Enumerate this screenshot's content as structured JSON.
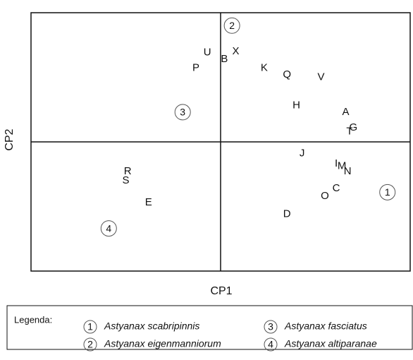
{
  "chart_data": {
    "type": "scatter",
    "x_label": "CP1",
    "y_label": "CP2",
    "xlim": [
      -1,
      1
    ],
    "ylim": [
      -1,
      1
    ],
    "labels": [
      "U",
      "X",
      "B",
      "P",
      "K",
      "Q",
      "V",
      "H",
      "A",
      "G",
      "T",
      "J",
      "I",
      "M",
      "N",
      "R",
      "S",
      "C",
      "O",
      "E",
      "D"
    ],
    "x": [
      -0.07,
      0.08,
      0.02,
      -0.13,
      0.23,
      0.35,
      0.53,
      0.4,
      0.66,
      0.7,
      0.68,
      0.43,
      0.61,
      0.64,
      0.67,
      -0.49,
      -0.5,
      0.61,
      0.55,
      -0.38,
      0.35
    ],
    "y": [
      0.69,
      0.7,
      0.64,
      0.57,
      0.57,
      0.52,
      0.5,
      0.28,
      0.23,
      0.11,
      0.08,
      -0.09,
      -0.17,
      -0.19,
      -0.23,
      -0.23,
      -0.3,
      -0.36,
      -0.42,
      -0.47,
      -0.56
    ],
    "legend_title": "Legenda:",
    "groups": [
      {
        "label": "1",
        "name": "Astyanax scabripinnis",
        "x": 0.88,
        "y": -0.39
      },
      {
        "label": "2",
        "name": "Astyanax eigenmanniorum",
        "x": 0.06,
        "y": 0.9
      },
      {
        "label": "3",
        "name": "Astyanax fasciatus",
        "x": -0.2,
        "y": 0.23
      },
      {
        "label": "4",
        "name": "Astyanax altiparanae",
        "x": -0.59,
        "y": -0.67
      }
    ]
  }
}
